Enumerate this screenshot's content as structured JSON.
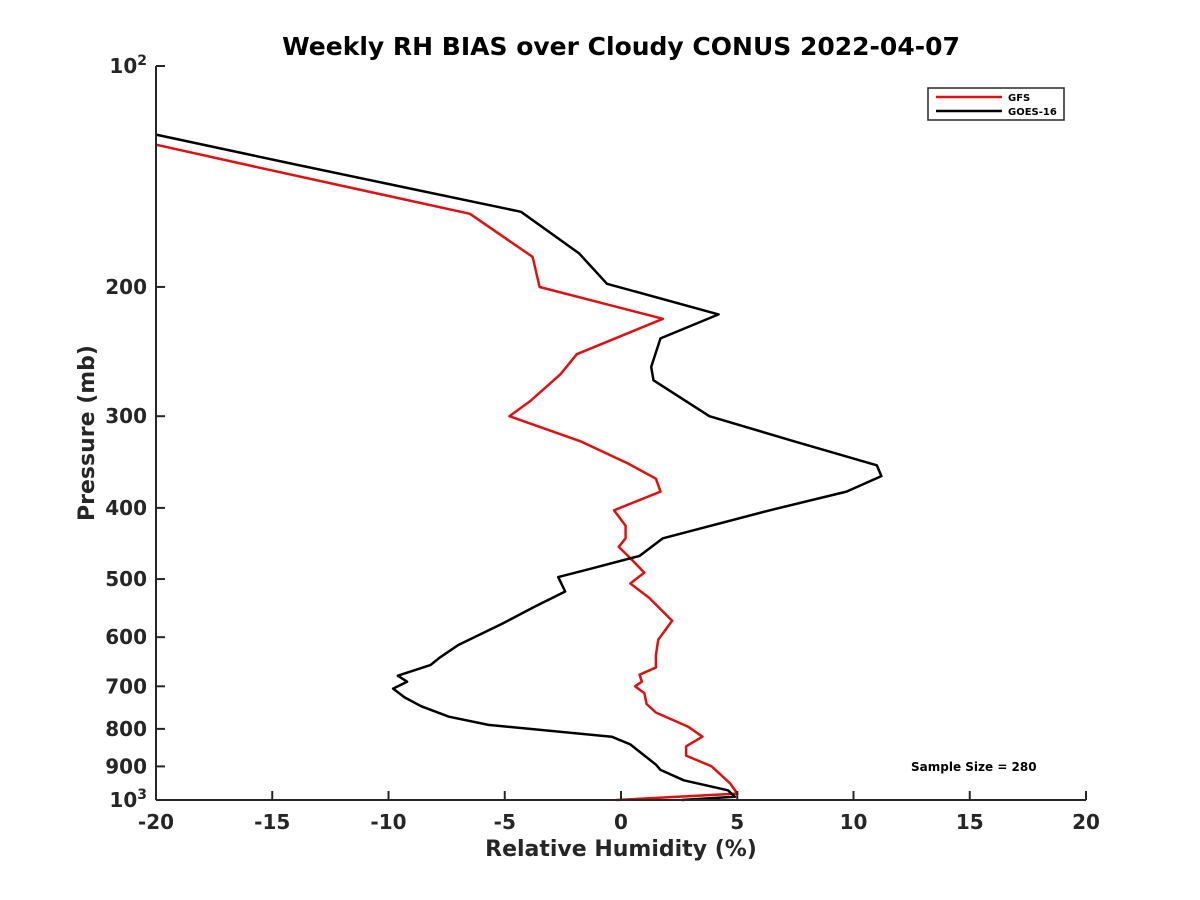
{
  "chart_data": {
    "type": "line",
    "title": "Weekly RH BIAS over Cloudy CONUS 2022-04-07",
    "xlabel": "Relative Humidity (%)",
    "ylabel": "Pressure (mb)",
    "xlim": [
      -20,
      20
    ],
    "ylim": [
      100,
      1000
    ],
    "y_scale": "log",
    "y_reversed": true,
    "x_ticks": [
      -20,
      -15,
      -10,
      -5,
      0,
      5,
      10,
      15,
      20
    ],
    "y_ticks": [
      {
        "value": 100,
        "base": "10",
        "exp": "2"
      },
      {
        "value": 200,
        "label": "200"
      },
      {
        "value": 300,
        "label": "300"
      },
      {
        "value": 400,
        "label": "400"
      },
      {
        "value": 500,
        "label": "500"
      },
      {
        "value": 600,
        "label": "600"
      },
      {
        "value": 700,
        "label": "700"
      },
      {
        "value": 800,
        "label": "800"
      },
      {
        "value": 900,
        "label": "900"
      },
      {
        "value": 1000,
        "base": "10",
        "exp": "3"
      }
    ],
    "grid": false,
    "legend_position": "top-right",
    "annotation": "Sample Size = 280",
    "series": [
      {
        "name": "GFS",
        "color": "#e01010",
        "points": [
          [
            -20,
            128
          ],
          [
            -15.8,
            137
          ],
          [
            -6.5,
            159
          ],
          [
            -3.8,
            182
          ],
          [
            -3.5,
            200
          ],
          [
            1.8,
            221
          ],
          [
            -1.9,
            247
          ],
          [
            -2.6,
            263
          ],
          [
            -3.9,
            286
          ],
          [
            -4.8,
            300
          ],
          [
            -1.7,
            325
          ],
          [
            0.3,
            348
          ],
          [
            1.5,
            365
          ],
          [
            1.7,
            380
          ],
          [
            -0.3,
            403
          ],
          [
            0.2,
            423
          ],
          [
            0.2,
            440
          ],
          [
            -0.1,
            452
          ],
          [
            0.3,
            465
          ],
          [
            1.0,
            490
          ],
          [
            0.4,
            507
          ],
          [
            1.2,
            530
          ],
          [
            2.2,
            570
          ],
          [
            1.6,
            605
          ],
          [
            1.5,
            635
          ],
          [
            1.5,
            660
          ],
          [
            0.8,
            675
          ],
          [
            0.9,
            690
          ],
          [
            0.6,
            700
          ],
          [
            1.0,
            715
          ],
          [
            1.1,
            740
          ],
          [
            1.5,
            760
          ],
          [
            2.9,
            795
          ],
          [
            3.5,
            820
          ],
          [
            2.8,
            845
          ],
          [
            2.8,
            870
          ],
          [
            3.9,
            900
          ],
          [
            4.7,
            950
          ],
          [
            5.0,
            980
          ],
          [
            -0.2,
            1000
          ]
        ]
      },
      {
        "name": "GOES-16",
        "color": "#000000",
        "points": [
          [
            -20,
            124
          ],
          [
            -14.1,
            136
          ],
          [
            -4.3,
            158
          ],
          [
            -1.8,
            180
          ],
          [
            -0.6,
            198
          ],
          [
            4.2,
            218
          ],
          [
            1.7,
            235
          ],
          [
            1.3,
            257
          ],
          [
            1.4,
            268
          ],
          [
            3.8,
            300
          ],
          [
            7.5,
            325
          ],
          [
            11.0,
            350
          ],
          [
            11.2,
            362
          ],
          [
            9.7,
            380
          ],
          [
            6.4,
            403
          ],
          [
            1.8,
            440
          ],
          [
            0.8,
            465
          ],
          [
            -1.4,
            485
          ],
          [
            -2.7,
            497
          ],
          [
            -2.4,
            520
          ],
          [
            -3.7,
            545
          ],
          [
            -5.1,
            575
          ],
          [
            -7.0,
            615
          ],
          [
            -7.8,
            640
          ],
          [
            -8.2,
            655
          ],
          [
            -9.6,
            677
          ],
          [
            -9.2,
            690
          ],
          [
            -9.8,
            705
          ],
          [
            -9.3,
            725
          ],
          [
            -8.6,
            745
          ],
          [
            -7.4,
            770
          ],
          [
            -5.7,
            790
          ],
          [
            -0.4,
            820
          ],
          [
            0.4,
            840
          ],
          [
            1.5,
            895
          ],
          [
            1.7,
            910
          ],
          [
            2.7,
            940
          ],
          [
            4.6,
            970
          ],
          [
            4.9,
            990
          ],
          [
            2.6,
            1000
          ]
        ]
      }
    ]
  }
}
